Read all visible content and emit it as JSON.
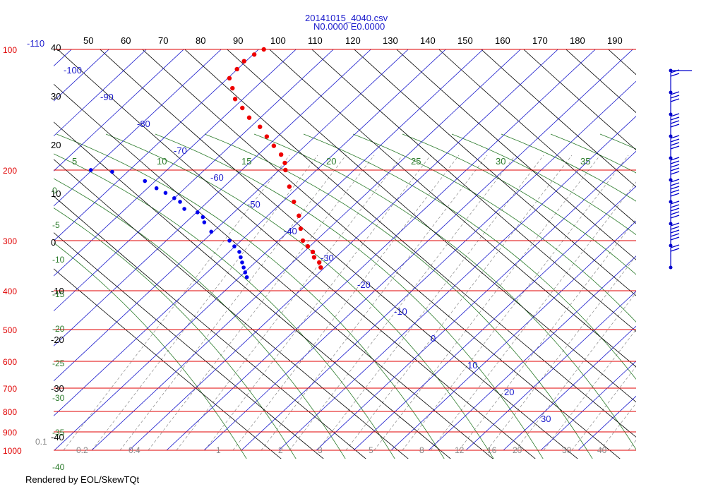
{
  "window": {
    "title_line1": "20141015_4040.csv",
    "title_line2": "N0.0000 E0.0000",
    "credit": "Rendered by EOL/SkewTQt"
  },
  "colors": {
    "isobar": "#e00000",
    "isotherm": "#1a1acc",
    "dry_adiabat": "#000000",
    "moist_adiabat": "#2a7a2a",
    "mixing_ratio": "#888888",
    "temperature_trace": "#ee0000",
    "dewpoint_trace": "#0000ee",
    "wind_barb": "#0000cc"
  },
  "chart_data": {
    "type": "scatter",
    "diagram": "skew-t log-p",
    "pressure_levels": [
      100,
      200,
      300,
      400,
      500,
      600,
      700,
      800,
      900,
      1000
    ],
    "top_scale_labels": [
      "50",
      "60",
      "70",
      "80",
      "90",
      "100",
      "110",
      "120",
      "130",
      "140",
      "150",
      "160",
      "170",
      "180",
      "190"
    ],
    "left_potential_temp_labels": [
      "40",
      "30",
      "20",
      "10",
      "0",
      "-10",
      "-20",
      "-30",
      "-40"
    ],
    "isotherm_labels": [
      "-110",
      "-100",
      "-90",
      "-80",
      "-70",
      "-60",
      "-50",
      "-40",
      "-30",
      "-20",
      "-10",
      "0",
      "10",
      "20",
      "30"
    ],
    "theta_e_labels_top": [
      "5",
      "10",
      "15",
      "20",
      "25",
      "30",
      "35"
    ],
    "theta_e_labels_left": [
      "0",
      "-5",
      "-10",
      "-15",
      "-20",
      "-25",
      "-30",
      "-35",
      "-40"
    ],
    "mixing_ratio_labels": [
      "0.1",
      "0.2",
      "0.4",
      "1",
      "2",
      "3",
      "5",
      "8",
      "12",
      "16",
      "20",
      "30",
      "40"
    ],
    "temperature_trace": [
      [
        100,
        -75
      ],
      [
        103,
        -77
      ],
      [
        107,
        -79
      ],
      [
        112,
        -80
      ],
      [
        118,
        -81
      ],
      [
        125,
        -79
      ],
      [
        133,
        -77
      ],
      [
        140,
        -74
      ],
      [
        148,
        -71
      ],
      [
        156,
        -67
      ],
      [
        165,
        -64
      ],
      [
        174,
        -61
      ],
      [
        183,
        -58
      ],
      [
        192,
        -56
      ],
      [
        200,
        -55
      ],
      [
        220,
        -52
      ],
      [
        240,
        -49
      ],
      [
        260,
        -46
      ],
      [
        280,
        -44
      ],
      [
        300,
        -42
      ],
      [
        310,
        -40
      ],
      [
        320,
        -38
      ],
      [
        330,
        -37
      ],
      [
        340,
        -35
      ],
      [
        350,
        -34
      ]
    ],
    "dewpoint_trace": [
      [
        200,
        -108
      ],
      [
        202,
        -102
      ],
      [
        213,
        -92
      ],
      [
        222,
        -88
      ],
      [
        228,
        -85
      ],
      [
        235,
        -82
      ],
      [
        240,
        -80
      ],
      [
        250,
        -78
      ],
      [
        255,
        -74
      ],
      [
        262,
        -72
      ],
      [
        270,
        -71
      ],
      [
        285,
        -68
      ],
      [
        300,
        -62
      ],
      [
        310,
        -60
      ],
      [
        320,
        -58
      ],
      [
        330,
        -57
      ],
      [
        340,
        -56
      ],
      [
        350,
        -55
      ],
      [
        360,
        -54
      ],
      [
        370,
        -53
      ]
    ],
    "wind_barbs": [
      {
        "speed_kt": 0,
        "dir_deg": 270
      },
      {
        "speed_kt": 20,
        "dir_deg": 300
      },
      {
        "speed_kt": 25,
        "dir_deg": 270
      },
      {
        "speed_kt": 35,
        "dir_deg": 270
      },
      {
        "speed_kt": 40,
        "dir_deg": 270
      },
      {
        "speed_kt": 50,
        "dir_deg": 250
      },
      {
        "speed_kt": 45,
        "dir_deg": 270
      },
      {
        "speed_kt": 55,
        "dir_deg": 270
      },
      {
        "speed_kt": 50,
        "dir_deg": 240
      },
      {
        "speed_kt": 15,
        "dir_deg": 240
      }
    ]
  }
}
